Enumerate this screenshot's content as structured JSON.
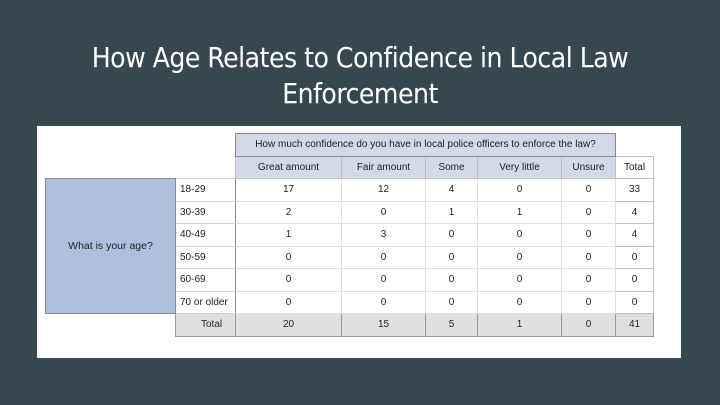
{
  "slide": {
    "title_line1": "How Age Relates to Confidence in Local Law",
    "title_line2": "Enforcement"
  },
  "table": {
    "question": "How much confidence do you have in local police officers to enforce the law?",
    "age_question": "What is your age?",
    "columns": [
      "Great amount",
      "Fair amount",
      "Some",
      "Very little",
      "Unsure",
      "Total"
    ],
    "rows": [
      {
        "label": "18-29",
        "values": [
          "17",
          "12",
          "4",
          "0",
          "0",
          "33"
        ]
      },
      {
        "label": "30-39",
        "values": [
          "2",
          "0",
          "1",
          "1",
          "0",
          "4"
        ]
      },
      {
        "label": "40-49",
        "values": [
          "1",
          "3",
          "0",
          "0",
          "0",
          "4"
        ]
      },
      {
        "label": "50-59",
        "values": [
          "0",
          "0",
          "0",
          "0",
          "0",
          "0"
        ]
      },
      {
        "label": "60-69",
        "values": [
          "0",
          "0",
          "0",
          "0",
          "0",
          "0"
        ]
      },
      {
        "label": "70 or older",
        "values": [
          "0",
          "0",
          "0",
          "0",
          "0",
          "0"
        ]
      }
    ],
    "total_row": {
      "label": "Total",
      "values": [
        "20",
        "15",
        "5",
        "1",
        "0",
        "41"
      ]
    }
  }
}
